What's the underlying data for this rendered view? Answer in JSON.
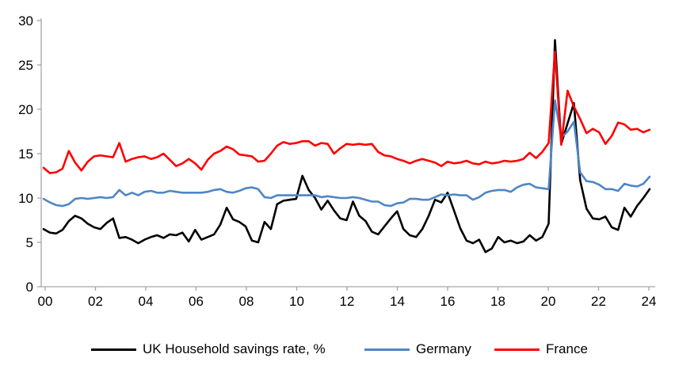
{
  "chart_data": {
    "type": "line",
    "title": "",
    "xlabel": "",
    "ylabel": "",
    "x_start": "2000Q1",
    "x_end": "2024Q1",
    "x_frequency": "quarterly",
    "x_tick_labels": [
      "00",
      "02",
      "04",
      "06",
      "08",
      "10",
      "12",
      "14",
      "16",
      "18",
      "20",
      "22",
      "24"
    ],
    "y_ticks": [
      0,
      5,
      10,
      15,
      20,
      25,
      30
    ],
    "ylim": [
      0,
      30
    ],
    "grid": false,
    "legend_position": "bottom",
    "axis_color": "#a6a6a6",
    "tick_label_color": "#000000",
    "series": [
      {
        "name": "UK Household savings rate, %",
        "color": "#000000",
        "values": [
          6.5,
          6.1,
          6.0,
          6.4,
          7.4,
          8.0,
          7.7,
          7.1,
          6.7,
          6.5,
          7.2,
          7.7,
          5.5,
          5.6,
          5.3,
          4.9,
          5.3,
          5.6,
          5.8,
          5.5,
          5.9,
          5.8,
          6.1,
          5.1,
          6.4,
          5.3,
          5.6,
          5.9,
          7.0,
          8.9,
          7.6,
          7.3,
          6.8,
          5.2,
          5.0,
          7.3,
          6.5,
          9.3,
          9.7,
          9.8,
          9.9,
          12.5,
          10.9,
          10.0,
          8.7,
          9.7,
          8.6,
          7.7,
          7.5,
          9.6,
          8.0,
          7.4,
          6.2,
          5.9,
          6.8,
          7.7,
          8.5,
          6.5,
          5.8,
          5.6,
          6.5,
          8.0,
          9.8,
          9.5,
          10.6,
          8.6,
          6.6,
          5.2,
          4.9,
          5.3,
          3.9,
          4.3,
          5.6,
          5.0,
          5.2,
          4.9,
          5.1,
          5.8,
          5.2,
          5.6,
          7.1,
          27.8,
          16.1,
          18.4,
          20.7,
          12.0,
          8.8,
          7.7,
          7.6,
          7.9,
          6.7,
          6.4,
          8.9,
          7.9,
          9.1,
          10.0,
          11.0
        ]
      },
      {
        "name": "Germany",
        "color": "#4f86c6",
        "values": [
          9.9,
          9.5,
          9.2,
          9.1,
          9.3,
          9.9,
          10.0,
          9.9,
          10.0,
          10.1,
          10.0,
          10.1,
          10.9,
          10.3,
          10.6,
          10.3,
          10.7,
          10.8,
          10.6,
          10.6,
          10.8,
          10.7,
          10.6,
          10.6,
          10.6,
          10.6,
          10.7,
          10.9,
          11.0,
          10.7,
          10.6,
          10.8,
          11.1,
          11.2,
          11.0,
          10.1,
          10.0,
          10.3,
          10.3,
          10.3,
          10.3,
          10.3,
          10.3,
          10.3,
          10.1,
          10.2,
          10.1,
          10.0,
          10.0,
          10.1,
          10.0,
          9.8,
          9.6,
          9.6,
          9.2,
          9.1,
          9.4,
          9.5,
          9.9,
          9.9,
          9.8,
          9.8,
          10.1,
          10.4,
          10.3,
          10.4,
          10.3,
          10.3,
          9.8,
          10.1,
          10.6,
          10.8,
          10.9,
          10.9,
          10.7,
          11.2,
          11.5,
          11.6,
          11.2,
          11.1,
          11.0,
          21.0,
          16.8,
          17.5,
          18.6,
          12.9,
          11.9,
          11.8,
          11.5,
          11.0,
          11.0,
          10.8,
          11.6,
          11.4,
          11.3,
          11.6,
          12.4
        ]
      },
      {
        "name": "France",
        "color": "#ff0000",
        "values": [
          13.4,
          12.8,
          12.9,
          13.3,
          15.3,
          14.0,
          13.1,
          14.1,
          14.7,
          14.8,
          14.7,
          14.6,
          16.2,
          14.1,
          14.4,
          14.6,
          14.7,
          14.4,
          14.6,
          15.0,
          14.3,
          13.6,
          13.9,
          14.4,
          13.9,
          13.2,
          14.3,
          15.0,
          15.3,
          15.8,
          15.5,
          14.9,
          14.8,
          14.7,
          14.1,
          14.2,
          15.0,
          15.9,
          16.3,
          16.1,
          16.2,
          16.4,
          16.4,
          15.9,
          16.2,
          16.1,
          15.0,
          15.6,
          16.1,
          16.0,
          16.1,
          16.0,
          16.1,
          15.2,
          14.8,
          14.7,
          14.4,
          14.2,
          13.9,
          14.2,
          14.4,
          14.2,
          14.0,
          13.6,
          14.1,
          13.9,
          14.0,
          14.2,
          13.9,
          13.8,
          14.1,
          13.9,
          14.0,
          14.2,
          14.1,
          14.2,
          14.4,
          15.1,
          14.5,
          15.2,
          16.2,
          26.5,
          16.0,
          22.1,
          20.3,
          18.9,
          17.3,
          17.8,
          17.4,
          16.1,
          17.0,
          18.5,
          18.3,
          17.7,
          17.8,
          17.4,
          17.7
        ]
      }
    ]
  },
  "legend": {
    "items": [
      {
        "label": "UK Household savings rate, %"
      },
      {
        "label": "Germany"
      },
      {
        "label": "France"
      }
    ]
  }
}
